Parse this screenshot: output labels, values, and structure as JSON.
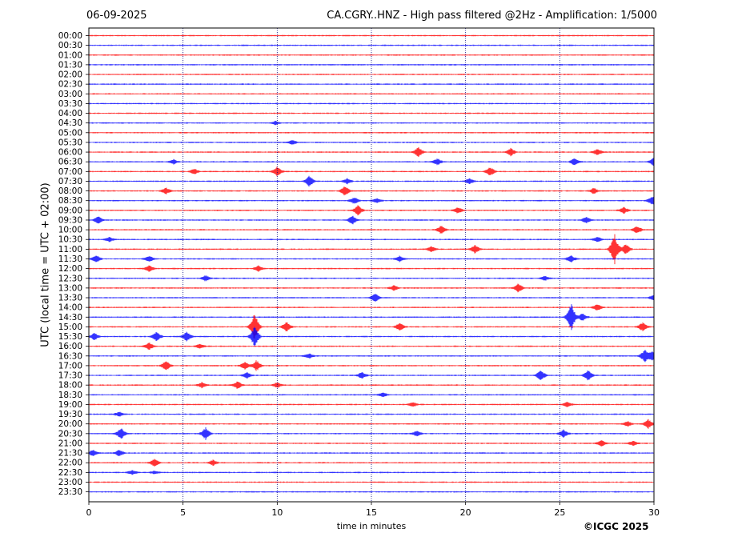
{
  "header": {
    "date": "06-09-2025",
    "title": "CA.CGRY..HNZ - High pass filtered @2Hz - Amplification: 1/5000"
  },
  "footer": {
    "copyright": "©ICGC 2025"
  },
  "colors": {
    "even_trace": "#ff0000",
    "odd_trace": "#0000ff",
    "grid": "#000080",
    "background": "#ffffff"
  },
  "chart_data": {
    "type": "line",
    "xlabel": "time in minutes",
    "ylabel": "UTC (local time = UTC + 02:00)",
    "xlim": [
      0,
      30
    ],
    "x_ticks": [
      "0",
      "5",
      "10",
      "15",
      "20",
      "25",
      "30"
    ],
    "vertical_grid": [
      5,
      10,
      15,
      20,
      25
    ],
    "grid": true,
    "rows": [
      "00:00",
      "00:30",
      "01:00",
      "01:30",
      "02:00",
      "02:30",
      "03:00",
      "03:30",
      "04:00",
      "04:30",
      "05:00",
      "05:30",
      "06:00",
      "06:30",
      "07:00",
      "07:30",
      "08:00",
      "08:30",
      "09:00",
      "09:30",
      "10:00",
      "10:30",
      "11:00",
      "11:30",
      "12:00",
      "12:30",
      "13:00",
      "13:30",
      "14:00",
      "14:30",
      "15:00",
      "15:30",
      "16:00",
      "16:30",
      "17:00",
      "17:30",
      "18:00",
      "18:30",
      "19:00",
      "19:30",
      "20:00",
      "20:30",
      "21:00",
      "21:30",
      "22:00",
      "22:30",
      "23:00",
      "23:30"
    ],
    "events": [
      {
        "row": "04:30",
        "minute": 9.9,
        "amp": 0.3
      },
      {
        "row": "05:30",
        "minute": 10.8,
        "amp": 0.4
      },
      {
        "row": "06:00",
        "minute": 17.5,
        "amp": 0.9
      },
      {
        "row": "06:00",
        "minute": 22.4,
        "amp": 0.7
      },
      {
        "row": "06:00",
        "minute": 27.0,
        "amp": 0.6
      },
      {
        "row": "06:30",
        "minute": 4.5,
        "amp": 0.4
      },
      {
        "row": "06:30",
        "minute": 18.5,
        "amp": 0.6
      },
      {
        "row": "06:30",
        "minute": 25.8,
        "amp": 0.7
      },
      {
        "row": "06:30",
        "minute": 30.0,
        "amp": 0.8
      },
      {
        "row": "07:00",
        "minute": 10.0,
        "amp": 0.9
      },
      {
        "row": "07:00",
        "minute": 21.3,
        "amp": 0.9
      },
      {
        "row": "07:00",
        "minute": 5.6,
        "amp": 0.5
      },
      {
        "row": "07:30",
        "minute": 11.7,
        "amp": 1.0
      },
      {
        "row": "07:30",
        "minute": 13.7,
        "amp": 0.5
      },
      {
        "row": "07:30",
        "minute": 20.2,
        "amp": 0.5
      },
      {
        "row": "08:00",
        "minute": 13.6,
        "amp": 0.9
      },
      {
        "row": "08:00",
        "minute": 4.1,
        "amp": 0.6
      },
      {
        "row": "08:00",
        "minute": 26.8,
        "amp": 0.5
      },
      {
        "row": "08:30",
        "minute": 14.1,
        "amp": 0.6
      },
      {
        "row": "08:30",
        "minute": 15.3,
        "amp": 0.4
      },
      {
        "row": "08:30",
        "minute": 29.9,
        "amp": 0.8
      },
      {
        "row": "09:00",
        "minute": 14.3,
        "amp": 0.9
      },
      {
        "row": "09:00",
        "minute": 19.6,
        "amp": 0.6
      },
      {
        "row": "09:00",
        "minute": 28.4,
        "amp": 0.6
      },
      {
        "row": "09:30",
        "minute": 0.5,
        "amp": 0.6
      },
      {
        "row": "09:30",
        "minute": 14.0,
        "amp": 0.8
      },
      {
        "row": "09:30",
        "minute": 26.4,
        "amp": 0.6
      },
      {
        "row": "10:00",
        "minute": 18.7,
        "amp": 0.8
      },
      {
        "row": "10:00",
        "minute": 29.1,
        "amp": 0.7
      },
      {
        "row": "10:30",
        "minute": 1.1,
        "amp": 0.4
      },
      {
        "row": "10:30",
        "minute": 27.0,
        "amp": 0.5
      },
      {
        "row": "11:00",
        "minute": 27.9,
        "amp": 2.8
      },
      {
        "row": "11:00",
        "minute": 28.5,
        "amp": 1.0
      },
      {
        "row": "11:00",
        "minute": 20.5,
        "amp": 0.8
      },
      {
        "row": "11:00",
        "minute": 18.2,
        "amp": 0.5
      },
      {
        "row": "11:30",
        "minute": 0.4,
        "amp": 0.7
      },
      {
        "row": "11:30",
        "minute": 3.2,
        "amp": 0.6
      },
      {
        "row": "11:30",
        "minute": 25.6,
        "amp": 0.7
      },
      {
        "row": "11:30",
        "minute": 16.5,
        "amp": 0.5
      },
      {
        "row": "12:00",
        "minute": 3.2,
        "amp": 0.6
      },
      {
        "row": "12:00",
        "minute": 9.0,
        "amp": 0.5
      },
      {
        "row": "12:30",
        "minute": 6.2,
        "amp": 0.5
      },
      {
        "row": "12:30",
        "minute": 24.2,
        "amp": 0.4
      },
      {
        "row": "13:00",
        "minute": 22.8,
        "amp": 0.8
      },
      {
        "row": "13:00",
        "minute": 16.2,
        "amp": 0.5
      },
      {
        "row": "13:30",
        "minute": 15.2,
        "amp": 0.8
      },
      {
        "row": "13:30",
        "minute": 30.0,
        "amp": 0.5
      },
      {
        "row": "14:00",
        "minute": 27.0,
        "amp": 0.6
      },
      {
        "row": "14:30",
        "minute": 25.6,
        "amp": 2.6
      },
      {
        "row": "14:30",
        "minute": 26.2,
        "amp": 0.7
      },
      {
        "row": "15:00",
        "minute": 8.8,
        "amp": 2.5
      },
      {
        "row": "15:00",
        "minute": 10.5,
        "amp": 0.9
      },
      {
        "row": "15:00",
        "minute": 16.5,
        "amp": 0.7
      },
      {
        "row": "15:00",
        "minute": 29.4,
        "amp": 0.8
      },
      {
        "row": "15:30",
        "minute": 8.8,
        "amp": 2.0
      },
      {
        "row": "15:30",
        "minute": 3.6,
        "amp": 0.9
      },
      {
        "row": "15:30",
        "minute": 5.2,
        "amp": 0.9
      },
      {
        "row": "15:30",
        "minute": 0.3,
        "amp": 0.6
      },
      {
        "row": "16:00",
        "minute": 3.2,
        "amp": 0.7
      },
      {
        "row": "16:00",
        "minute": 5.9,
        "amp": 0.4
      },
      {
        "row": "16:30",
        "minute": 29.5,
        "amp": 1.1
      },
      {
        "row": "16:30",
        "minute": 29.9,
        "amp": 0.9
      },
      {
        "row": "16:30",
        "minute": 11.7,
        "amp": 0.4
      },
      {
        "row": "17:00",
        "minute": 4.1,
        "amp": 0.9
      },
      {
        "row": "17:00",
        "minute": 8.9,
        "amp": 1.0
      },
      {
        "row": "17:00",
        "minute": 8.3,
        "amp": 0.7
      },
      {
        "row": "17:30",
        "minute": 24.0,
        "amp": 1.0
      },
      {
        "row": "17:30",
        "minute": 26.5,
        "amp": 1.0
      },
      {
        "row": "17:30",
        "minute": 14.5,
        "amp": 0.6
      },
      {
        "row": "17:30",
        "minute": 8.4,
        "amp": 0.6
      },
      {
        "row": "18:00",
        "minute": 7.9,
        "amp": 0.7
      },
      {
        "row": "18:00",
        "minute": 6.0,
        "amp": 0.5
      },
      {
        "row": "18:00",
        "minute": 10.0,
        "amp": 0.5
      },
      {
        "row": "18:30",
        "minute": 15.6,
        "amp": 0.4
      },
      {
        "row": "19:00",
        "minute": 25.4,
        "amp": 0.5
      },
      {
        "row": "19:00",
        "minute": 17.2,
        "amp": 0.4
      },
      {
        "row": "19:30",
        "minute": 1.6,
        "amp": 0.4
      },
      {
        "row": "20:00",
        "minute": 29.7,
        "amp": 0.8
      },
      {
        "row": "20:00",
        "minute": 28.6,
        "amp": 0.5
      },
      {
        "row": "20:30",
        "minute": 1.7,
        "amp": 1.1
      },
      {
        "row": "20:30",
        "minute": 6.2,
        "amp": 1.1
      },
      {
        "row": "20:30",
        "minute": 25.2,
        "amp": 0.7
      },
      {
        "row": "20:30",
        "minute": 17.4,
        "amp": 0.5
      },
      {
        "row": "21:00",
        "minute": 27.2,
        "amp": 0.6
      },
      {
        "row": "21:00",
        "minute": 28.9,
        "amp": 0.5
      },
      {
        "row": "21:30",
        "minute": 0.2,
        "amp": 0.6
      },
      {
        "row": "21:30",
        "minute": 1.6,
        "amp": 0.6
      },
      {
        "row": "22:00",
        "minute": 3.5,
        "amp": 0.7
      },
      {
        "row": "22:00",
        "minute": 6.6,
        "amp": 0.5
      },
      {
        "row": "22:30",
        "minute": 2.3,
        "amp": 0.4
      },
      {
        "row": "22:30",
        "minute": 3.5,
        "amp": 0.3
      }
    ]
  }
}
